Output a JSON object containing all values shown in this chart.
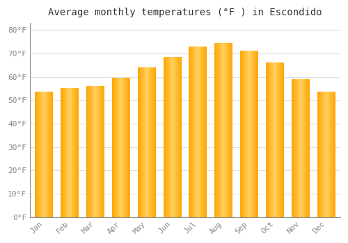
{
  "title": "Average monthly temperatures (°F ) in Escondido",
  "months": [
    "Jan",
    "Feb",
    "Mar",
    "Apr",
    "May",
    "Jun",
    "Jul",
    "Aug",
    "Sep",
    "Oct",
    "Nov",
    "Dec"
  ],
  "values": [
    53.5,
    55.0,
    56.0,
    59.5,
    64.0,
    68.5,
    73.0,
    74.5,
    71.0,
    66.0,
    59.0,
    53.5
  ],
  "bar_color_center": "#FFD060",
  "bar_color_edge": "#FFA500",
  "yticks": [
    0,
    10,
    20,
    30,
    40,
    50,
    60,
    70,
    80
  ],
  "ylim": [
    0,
    83
  ],
  "background_color": "#ffffff",
  "grid_color": "#e0e0e0",
  "title_fontsize": 10,
  "tick_fontsize": 8,
  "font_family": "monospace"
}
